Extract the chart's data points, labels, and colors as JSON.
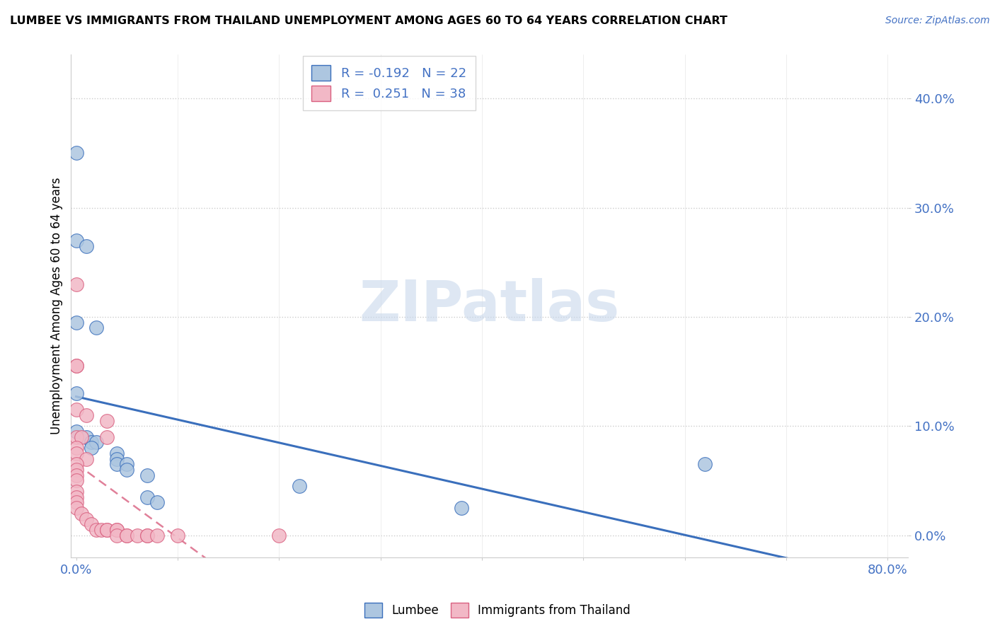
{
  "title": "LUMBEE VS IMMIGRANTS FROM THAILAND UNEMPLOYMENT AMONG AGES 60 TO 64 YEARS CORRELATION CHART",
  "source": "Source: ZipAtlas.com",
  "ylabel": "Unemployment Among Ages 60 to 64 years",
  "ytick_vals": [
    0.0,
    0.1,
    0.2,
    0.3,
    0.4
  ],
  "xlim": [
    -0.005,
    0.82
  ],
  "ylim": [
    -0.02,
    0.44
  ],
  "watermark": "ZIPatlas",
  "legend_lumbee_R": "-0.192",
  "legend_lumbee_N": "22",
  "legend_thailand_R": "0.251",
  "legend_thailand_N": "38",
  "lumbee_color": "#adc6e0",
  "thailand_color": "#f2b8c6",
  "lumbee_line_color": "#3a6fbc",
  "thailand_line_color": "#d96080",
  "lumbee_scatter": [
    [
      0.0,
      0.35
    ],
    [
      0.0,
      0.27
    ],
    [
      0.01,
      0.265
    ],
    [
      0.0,
      0.195
    ],
    [
      0.02,
      0.19
    ],
    [
      0.0,
      0.13
    ],
    [
      0.0,
      0.095
    ],
    [
      0.01,
      0.09
    ],
    [
      0.015,
      0.085
    ],
    [
      0.02,
      0.085
    ],
    [
      0.015,
      0.08
    ],
    [
      0.04,
      0.075
    ],
    [
      0.04,
      0.07
    ],
    [
      0.04,
      0.065
    ],
    [
      0.05,
      0.065
    ],
    [
      0.05,
      0.06
    ],
    [
      0.07,
      0.055
    ],
    [
      0.07,
      0.035
    ],
    [
      0.08,
      0.03
    ],
    [
      0.22,
      0.045
    ],
    [
      0.38,
      0.025
    ],
    [
      0.62,
      0.065
    ]
  ],
  "thailand_scatter": [
    [
      0.0,
      0.23
    ],
    [
      0.0,
      0.155
    ],
    [
      0.0,
      0.155
    ],
    [
      0.0,
      0.115
    ],
    [
      0.01,
      0.11
    ],
    [
      0.03,
      0.105
    ],
    [
      0.0,
      0.09
    ],
    [
      0.005,
      0.09
    ],
    [
      0.03,
      0.09
    ],
    [
      0.0,
      0.08
    ],
    [
      0.0,
      0.075
    ],
    [
      0.01,
      0.07
    ],
    [
      0.0,
      0.065
    ],
    [
      0.0,
      0.06
    ],
    [
      0.0,
      0.055
    ],
    [
      0.0,
      0.05
    ],
    [
      0.0,
      0.04
    ],
    [
      0.0,
      0.035
    ],
    [
      0.0,
      0.03
    ],
    [
      0.0,
      0.025
    ],
    [
      0.005,
      0.02
    ],
    [
      0.01,
      0.015
    ],
    [
      0.015,
      0.01
    ],
    [
      0.02,
      0.005
    ],
    [
      0.025,
      0.005
    ],
    [
      0.03,
      0.005
    ],
    [
      0.03,
      0.005
    ],
    [
      0.04,
      0.005
    ],
    [
      0.04,
      0.005
    ],
    [
      0.04,
      0.0
    ],
    [
      0.05,
      0.0
    ],
    [
      0.05,
      0.0
    ],
    [
      0.06,
      0.0
    ],
    [
      0.07,
      0.0
    ],
    [
      0.07,
      0.0
    ],
    [
      0.08,
      0.0
    ],
    [
      0.1,
      0.0
    ],
    [
      0.2,
      0.0
    ]
  ]
}
